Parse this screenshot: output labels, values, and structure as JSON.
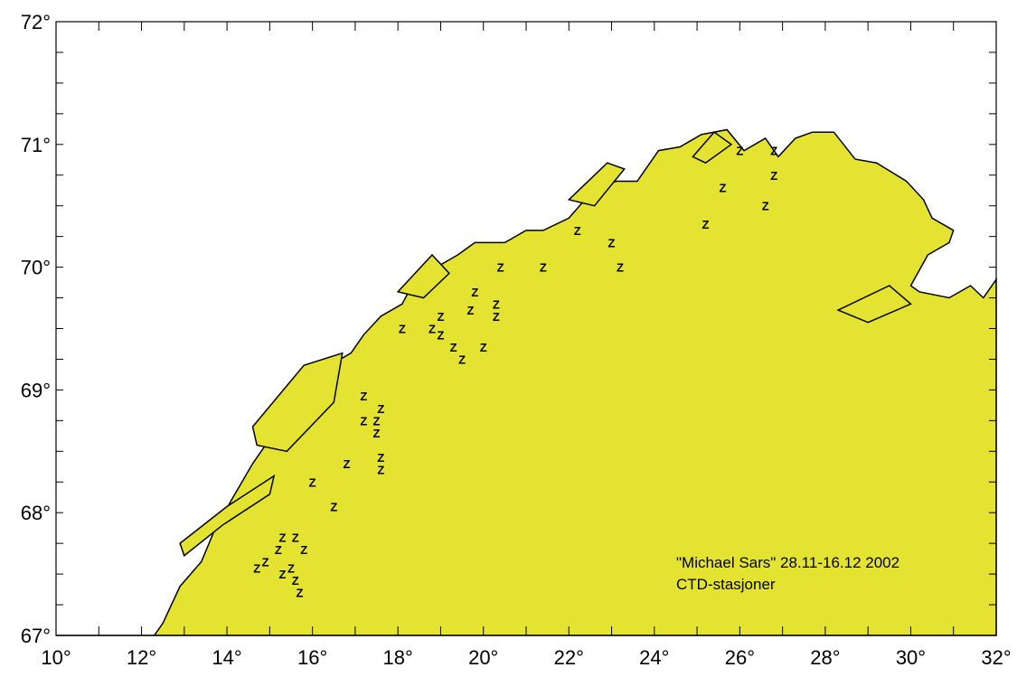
{
  "map": {
    "extent": {
      "lon": [
        10,
        32
      ],
      "lat": [
        67,
        72
      ]
    },
    "land_color": "#e4e332",
    "sea_color": "#ffffff",
    "annotation": {
      "line1": "\"Michael Sars\" 28.11-16.12 2002",
      "line2": "CTD-stasjoner"
    },
    "marker_symbol": "Z",
    "x_ticks": [
      "10°",
      "12°",
      "14°",
      "16°",
      "18°",
      "20°",
      "22°",
      "24°",
      "26°",
      "28°",
      "30°",
      "32°"
    ],
    "y_ticks": [
      "67°",
      "68°",
      "69°",
      "70°",
      "71°",
      "72°"
    ],
    "stations": [
      [
        22.2,
        70.3
      ],
      [
        23.0,
        70.2
      ],
      [
        23.2,
        70.0
      ],
      [
        21.4,
        70.0
      ],
      [
        20.4,
        70.0
      ],
      [
        19.8,
        69.8
      ],
      [
        19.7,
        69.65
      ],
      [
        20.3,
        69.7
      ],
      [
        20.3,
        69.6
      ],
      [
        20.0,
        69.35
      ],
      [
        18.8,
        69.5
      ],
      [
        19.0,
        69.6
      ],
      [
        19.0,
        69.45
      ],
      [
        19.3,
        69.35
      ],
      [
        19.5,
        69.25
      ],
      [
        18.1,
        69.5
      ],
      [
        17.2,
        68.95
      ],
      [
        17.6,
        68.85
      ],
      [
        17.2,
        68.75
      ],
      [
        17.5,
        68.75
      ],
      [
        17.5,
        68.65
      ],
      [
        16.8,
        68.4
      ],
      [
        17.6,
        68.45
      ],
      [
        17.6,
        68.35
      ],
      [
        16.0,
        68.25
      ],
      [
        16.5,
        68.05
      ],
      [
        15.3,
        67.8
      ],
      [
        15.6,
        67.8
      ],
      [
        15.8,
        67.7
      ],
      [
        15.2,
        67.7
      ],
      [
        14.9,
        67.6
      ],
      [
        15.5,
        67.55
      ],
      [
        14.7,
        67.55
      ],
      [
        15.3,
        67.5
      ],
      [
        15.6,
        67.45
      ],
      [
        15.7,
        67.35
      ],
      [
        25.2,
        70.35
      ],
      [
        25.6,
        70.65
      ],
      [
        26.0,
        70.95
      ],
      [
        26.8,
        70.95
      ],
      [
        26.6,
        70.5
      ],
      [
        26.8,
        70.75
      ]
    ],
    "coastline": [
      [
        10.0,
        72.0
      ],
      [
        32.0,
        72.0
      ],
      [
        32.0,
        69.9
      ],
      [
        31.7,
        69.75
      ],
      [
        31.4,
        69.85
      ],
      [
        30.9,
        69.75
      ],
      [
        30.2,
        69.8
      ],
      [
        30.0,
        69.85
      ],
      [
        30.4,
        70.1
      ],
      [
        30.9,
        70.2
      ],
      [
        31.0,
        70.3
      ],
      [
        30.5,
        70.4
      ],
      [
        30.3,
        70.55
      ],
      [
        29.9,
        70.7
      ],
      [
        29.2,
        70.85
      ],
      [
        28.7,
        70.88
      ],
      [
        28.2,
        71.1
      ],
      [
        27.7,
        71.1
      ],
      [
        27.3,
        71.05
      ],
      [
        26.9,
        70.9
      ],
      [
        26.6,
        71.05
      ],
      [
        26.1,
        70.95
      ],
      [
        25.7,
        71.12
      ],
      [
        25.1,
        71.08
      ],
      [
        24.6,
        70.98
      ],
      [
        24.1,
        70.95
      ],
      [
        23.6,
        70.7
      ],
      [
        23.1,
        70.7
      ],
      [
        22.5,
        70.6
      ],
      [
        22.0,
        70.4
      ],
      [
        21.4,
        70.3
      ],
      [
        21.0,
        70.3
      ],
      [
        20.5,
        70.2
      ],
      [
        19.8,
        70.2
      ],
      [
        19.4,
        70.1
      ],
      [
        18.9,
        70.0
      ],
      [
        18.4,
        69.9
      ],
      [
        18.1,
        69.7
      ],
      [
        17.6,
        69.6
      ],
      [
        17.2,
        69.45
      ],
      [
        16.9,
        69.3
      ],
      [
        16.4,
        69.2
      ],
      [
        16.0,
        69.0
      ],
      [
        15.4,
        68.8
      ],
      [
        14.6,
        68.4
      ],
      [
        14.1,
        68.1
      ],
      [
        13.7,
        67.85
      ],
      [
        13.4,
        67.6
      ],
      [
        12.9,
        67.4
      ],
      [
        12.5,
        67.1
      ],
      [
        12.3,
        67.0
      ],
      [
        10.0,
        67.0
      ]
    ],
    "islands": [
      [
        [
          14.6,
          68.7
        ],
        [
          15.8,
          69.2
        ],
        [
          16.7,
          69.3
        ],
        [
          16.5,
          68.9
        ],
        [
          15.4,
          68.5
        ],
        [
          14.7,
          68.55
        ]
      ],
      [
        [
          12.9,
          67.75
        ],
        [
          14.0,
          68.05
        ],
        [
          15.1,
          68.3
        ],
        [
          15.0,
          68.15
        ],
        [
          13.9,
          67.9
        ],
        [
          13.0,
          67.65
        ]
      ],
      [
        [
          18.0,
          69.8
        ],
        [
          18.8,
          70.1
        ],
        [
          19.2,
          69.95
        ],
        [
          18.6,
          69.75
        ]
      ],
      [
        [
          22.0,
          70.55
        ],
        [
          22.9,
          70.85
        ],
        [
          23.3,
          70.8
        ],
        [
          22.6,
          70.5
        ]
      ],
      [
        [
          28.3,
          69.65
        ],
        [
          29.5,
          69.85
        ],
        [
          30.0,
          69.7
        ],
        [
          29.0,
          69.55
        ]
      ],
      [
        [
          24.9,
          70.9
        ],
        [
          25.4,
          71.1
        ],
        [
          25.8,
          71.0
        ],
        [
          25.2,
          70.85
        ]
      ]
    ]
  }
}
